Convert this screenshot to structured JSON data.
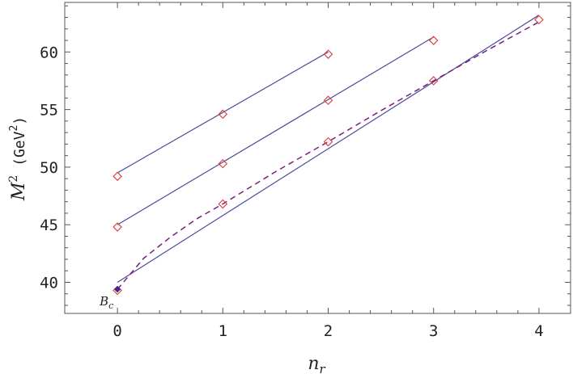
{
  "chart_data": {
    "type": "scatter",
    "xlabel_main": "n",
    "xlabel_sub": "r",
    "ylabel_main": "M",
    "ylabel_sup": "2",
    "ylabel_unit_open": " (GeV",
    "ylabel_unit_sup": "2",
    "ylabel_unit_close": ")",
    "xlim": [
      -0.5,
      4.3
    ],
    "ylim": [
      37.3,
      64.3
    ],
    "xticks": [
      0,
      1,
      2,
      3,
      4
    ],
    "xtick_labels": [
      "0",
      "1",
      "2",
      "3",
      "4"
    ],
    "yticks": [
      40,
      45,
      50,
      55,
      60
    ],
    "ytick_labels": [
      "40",
      "45",
      "50",
      "55",
      "60"
    ],
    "grid": false,
    "colors": {
      "line": "#4a4a9c",
      "dashed": "#7a1f7a",
      "marker": "#e23a3a",
      "filled": "#3a2a8a"
    },
    "series": [
      {
        "style": "solid",
        "fit": {
          "x": [
            0,
            2
          ],
          "y": [
            49.5,
            60.0
          ]
        },
        "points": [
          {
            "x": 0,
            "y": 49.2
          },
          {
            "x": 1,
            "y": 54.6
          },
          {
            "x": 2,
            "y": 59.8
          }
        ]
      },
      {
        "style": "solid",
        "fit": {
          "x": [
            0,
            3
          ],
          "y": [
            45.0,
            61.3
          ]
        },
        "points": [
          {
            "x": 0,
            "y": 44.8
          },
          {
            "x": 1,
            "y": 50.3
          },
          {
            "x": 2,
            "y": 55.8
          },
          {
            "x": 3,
            "y": 61.0
          }
        ]
      },
      {
        "style": "solid",
        "fit": {
          "x": [
            0,
            4
          ],
          "y": [
            40.0,
            63.2
          ]
        },
        "points": [
          {
            "x": 0,
            "y": 39.3
          },
          {
            "x": 1,
            "y": 46.8
          },
          {
            "x": 2,
            "y": 52.2
          },
          {
            "x": 3,
            "y": 57.5
          },
          {
            "x": 4,
            "y": 62.8
          }
        ]
      },
      {
        "style": "dashed",
        "curve": {
          "x": [
            0,
            0.25,
            0.5,
            0.75,
            1,
            1.5,
            2,
            2.5,
            3,
            3.5,
            4
          ],
          "y": [
            39.4,
            42.1,
            43.9,
            45.5,
            46.8,
            49.6,
            52.2,
            54.9,
            57.5,
            60.1,
            62.6
          ]
        }
      }
    ],
    "filled_point": {
      "x": 0,
      "y": 39.4
    },
    "annotation": {
      "text_main": "B",
      "text_sub": "c",
      "x": 0,
      "y": 39.4
    }
  }
}
